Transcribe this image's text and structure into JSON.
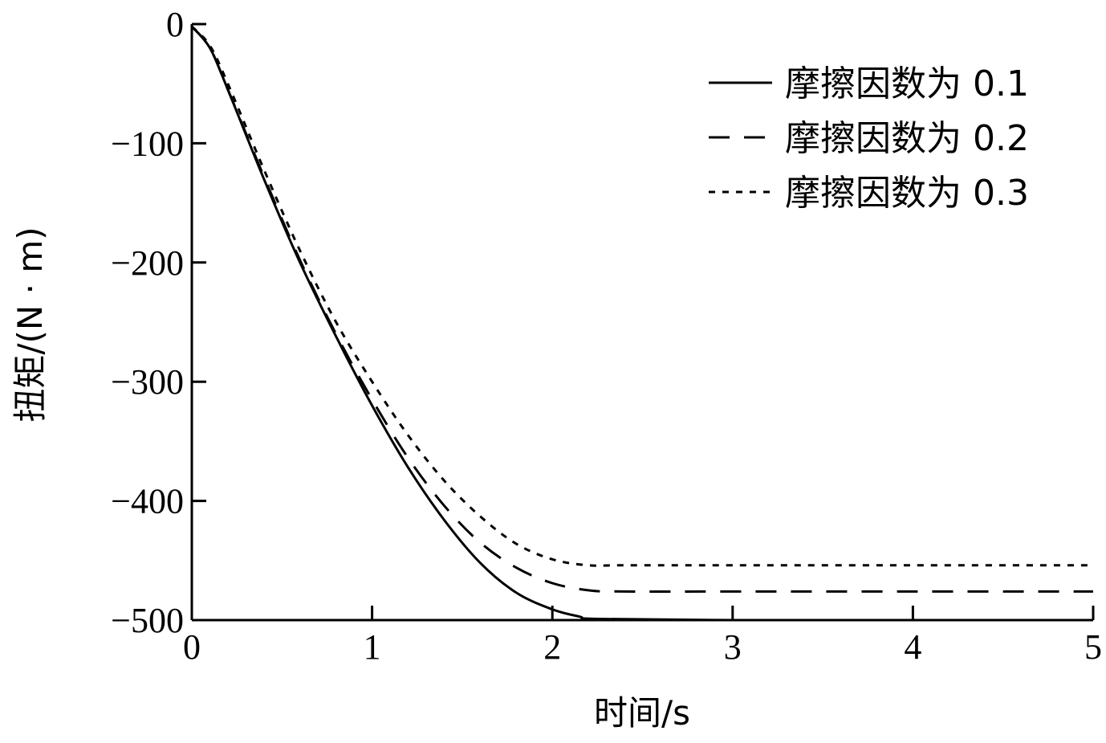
{
  "chart_data": {
    "type": "line",
    "xlabel": "时间/s",
    "ylabel": "扭矩/(N · m)",
    "xlim": [
      0,
      5
    ],
    "ylim": [
      -500,
      0
    ],
    "xticks": [
      0,
      1,
      2,
      3,
      4,
      5
    ],
    "yticks": [
      0,
      -100,
      -200,
      -300,
      -400,
      -500
    ],
    "xtick_labels": [
      "0",
      "1",
      "2",
      "3",
      "4",
      "5"
    ],
    "ytick_labels": [
      "0",
      "−100",
      "−200",
      "−300",
      "−400",
      "−500"
    ],
    "grid": false,
    "legend_position": "top-right",
    "series": [
      {
        "name": "摩擦因数为 0.1",
        "style": "solid",
        "color": "#000000",
        "x": [
          0,
          0.1,
          0.2,
          0.4,
          0.6,
          0.8,
          1.0,
          1.2,
          1.4,
          1.6,
          1.8,
          2.0,
          2.15,
          2.25,
          3.0,
          4.0,
          5.0
        ],
        "y": [
          -2,
          -20,
          -55,
          -130,
          -200,
          -262,
          -320,
          -372,
          -416,
          -452,
          -477,
          -491,
          -497,
          -499,
          -500,
          -500,
          -500
        ]
      },
      {
        "name": "摩擦因数为 0.2",
        "style": "dashed",
        "color": "#000000",
        "x": [
          0,
          0.1,
          0.2,
          0.4,
          0.6,
          0.8,
          1.0,
          1.2,
          1.4,
          1.6,
          1.8,
          2.0,
          2.2,
          2.4,
          3.0,
          4.0,
          5.0
        ],
        "y": [
          -2,
          -20,
          -55,
          -128,
          -198,
          -260,
          -315,
          -364,
          -404,
          -435,
          -456,
          -469,
          -475,
          -476,
          -476,
          -476,
          -476
        ]
      },
      {
        "name": "摩擦因数为 0.3",
        "style": "dotted",
        "color": "#000000",
        "x": [
          0,
          0.1,
          0.2,
          0.4,
          0.6,
          0.8,
          1.0,
          1.2,
          1.4,
          1.6,
          1.8,
          2.0,
          2.2,
          2.4,
          3.0,
          4.0,
          5.0
        ],
        "y": [
          -2,
          -18,
          -50,
          -122,
          -190,
          -250,
          -300,
          -345,
          -383,
          -413,
          -436,
          -449,
          -454,
          -454,
          -454,
          -454,
          -454
        ]
      }
    ]
  }
}
